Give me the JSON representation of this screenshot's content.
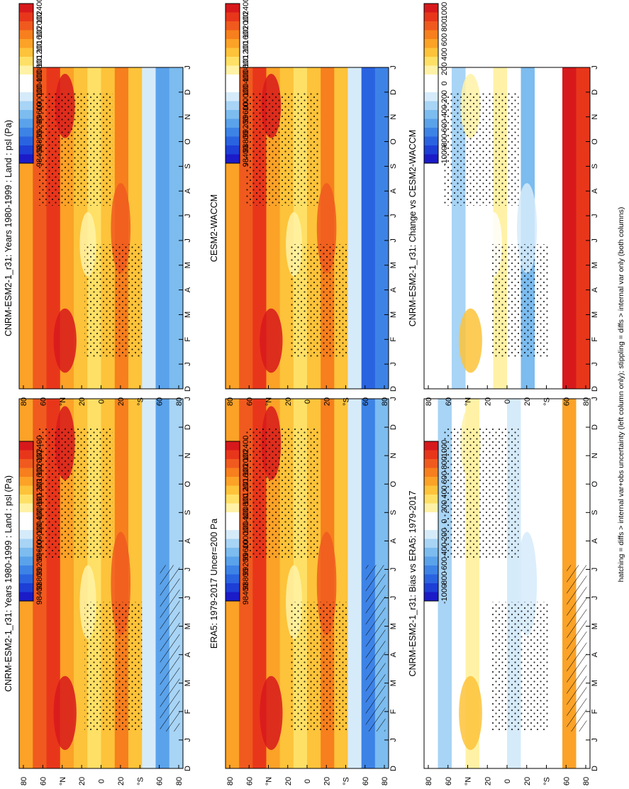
{
  "figure": {
    "footnote": "hatching = diffs > internal var+obs uncertainty (left column only); stippling = diffs > internal var only (both columns)"
  },
  "colorbars": {
    "absolute": {
      "labels": [
        "102400",
        "102000",
        "101600",
        "101200",
        "100800",
        "100400",
        "100000",
        "99600",
        "99200",
        "98800",
        "98400"
      ],
      "colors": [
        "#d7191c",
        "#e8361b",
        "#f05a1e",
        "#f77f1d",
        "#fba227",
        "#fdc33a",
        "#ffe066",
        "#fff2a6",
        "#ffffff",
        "#ffffff",
        "#d6ebfa",
        "#a8d4f5",
        "#7cbcef",
        "#5aa2ea",
        "#3d83e6",
        "#2a63e0",
        "#1d3fd6",
        "#1b1bc8"
      ]
    },
    "difference": {
      "labels": [
        "1000",
        "800",
        "600",
        "400",
        "200",
        "0",
        "-200",
        "-400",
        "-600",
        "-800",
        "-1000"
      ],
      "colors": [
        "#d7191c",
        "#e8361b",
        "#f05a1e",
        "#f77f1d",
        "#fba227",
        "#fdc33a",
        "#ffe066",
        "#fff2a6",
        "#ffffff",
        "#ffffff",
        "#d6ebfa",
        "#a8d4f5",
        "#7cbcef",
        "#5aa2ea",
        "#3d83e6",
        "#2a63e0",
        "#1d3fd6",
        "#1b1bc8"
      ]
    }
  },
  "chart_data": [
    {
      "type": "heatmap",
      "id": "p1",
      "title": "CNRM-ESM2-1_r31: Years 1980-1999 : Land : psl (Pa)",
      "x": [
        "D",
        "J",
        "F",
        "M",
        "A",
        "M",
        "J",
        "J",
        "A",
        "S",
        "O",
        "N",
        "D",
        "J"
      ],
      "y": [
        "80",
        "60",
        "°N",
        "20",
        "0",
        "20",
        "°S",
        "60",
        "80"
      ],
      "ylim": [
        -90,
        90
      ],
      "colorbar": "absolute",
      "stippled": true,
      "hatched": true,
      "band_colors": [
        "#fba227",
        "#f05a1e",
        "#e8361b",
        "#fba227",
        "#fdc33a",
        "#ffe066",
        "#fdc33a",
        "#f77f1d",
        "#fdc33a",
        "#d6ebfa",
        "#5aa2ea",
        "#a8d4f5"
      ]
    },
    {
      "type": "heatmap",
      "id": "p2",
      "title": "CNRM-ESM2-1_r31: Years 1980-1999 : Land : psl (Pa)",
      "x": [
        "D",
        "J",
        "F",
        "M",
        "A",
        "M",
        "J",
        "J",
        "A",
        "S",
        "O",
        "N",
        "D",
        "J"
      ],
      "y": [
        "80",
        "60",
        "°N",
        "20",
        "0",
        "20",
        "°S",
        "60",
        "80"
      ],
      "ylim": [
        -90,
        90
      ],
      "colorbar": "absolute",
      "stippled": true,
      "hatched": false,
      "band_colors": [
        "#fba227",
        "#f05a1e",
        "#e8361b",
        "#fba227",
        "#fdc33a",
        "#ffe066",
        "#fdc33a",
        "#f77f1d",
        "#fdc33a",
        "#d6ebfa",
        "#5aa2ea",
        "#7cbcef"
      ]
    },
    {
      "type": "heatmap",
      "id": "p3",
      "title": "ERA5: 1979-2017 Uncer=200 Pa",
      "x": [
        "D",
        "J",
        "F",
        "M",
        "A",
        "M",
        "J",
        "J",
        "A",
        "S",
        "O",
        "N",
        "D",
        "J"
      ],
      "y": [
        "80",
        "60",
        "°N",
        "20",
        "0",
        "20",
        "°S",
        "60",
        "80"
      ],
      "ylim": [
        -90,
        90
      ],
      "colorbar": "absolute",
      "stippled": true,
      "hatched": true,
      "band_colors": [
        "#fba227",
        "#f05a1e",
        "#e8361b",
        "#fba227",
        "#fdc33a",
        "#ffe066",
        "#fdc33a",
        "#f77f1d",
        "#fdc33a",
        "#d6ebfa",
        "#3d83e6",
        "#7cbcef"
      ]
    },
    {
      "type": "heatmap",
      "id": "p4",
      "title": "CESM2-WACCM",
      "x": [
        "D",
        "J",
        "F",
        "M",
        "A",
        "M",
        "J",
        "J",
        "A",
        "S",
        "O",
        "N",
        "D",
        "J"
      ],
      "y": [
        "80",
        "60",
        "°N",
        "20",
        "0",
        "20",
        "°S",
        "60",
        "80"
      ],
      "ylim": [
        -90,
        90
      ],
      "colorbar": "absolute",
      "stippled": true,
      "hatched": false,
      "band_colors": [
        "#fba227",
        "#f05a1e",
        "#e8361b",
        "#fba227",
        "#fdc33a",
        "#ffe066",
        "#fdc33a",
        "#f77f1d",
        "#fdc33a",
        "#d6ebfa",
        "#2a63e0",
        "#3d83e6"
      ]
    },
    {
      "type": "heatmap",
      "id": "p5",
      "title": "CNRM-ESM2-1_r31: Bias vs ERA5: 1979-2017",
      "x": [
        "D",
        "J",
        "F",
        "M",
        "A",
        "M",
        "J",
        "J",
        "A",
        "S",
        "O",
        "N",
        "D",
        "J"
      ],
      "y": [
        "80",
        "60",
        "°N",
        "20",
        "0",
        "20",
        "°S",
        "60",
        "80"
      ],
      "ylim": [
        -90,
        90
      ],
      "colorbar": "difference",
      "stippled": true,
      "hatched": true,
      "band_colors": [
        "#ffffff",
        "#a8d4f5",
        "#ffffff",
        "#fff2a6",
        "#ffffff",
        "#ffffff",
        "#d6ebfa",
        "#ffffff",
        "#ffffff",
        "#ffffff",
        "#fba227",
        "#ffffff"
      ]
    },
    {
      "type": "heatmap",
      "id": "p6",
      "title": "CNRM-ESM2-1_r31: Change vs CESM2-WACCM",
      "x": [
        "D",
        "J",
        "F",
        "M",
        "A",
        "M",
        "J",
        "J",
        "A",
        "S",
        "O",
        "N",
        "D",
        "J"
      ],
      "y": [
        "80",
        "60",
        "°N",
        "20",
        "0",
        "20",
        "°S",
        "60",
        "80"
      ],
      "ylim": [
        -90,
        90
      ],
      "colorbar": "difference",
      "stippled": true,
      "hatched": false,
      "band_colors": [
        "#ffffff",
        "#ffffff",
        "#a8d4f5",
        "#ffffff",
        "#ffffff",
        "#fff2a6",
        "#ffffff",
        "#7cbcef",
        "#ffffff",
        "#ffffff",
        "#d7191c",
        "#e8361b"
      ]
    }
  ]
}
